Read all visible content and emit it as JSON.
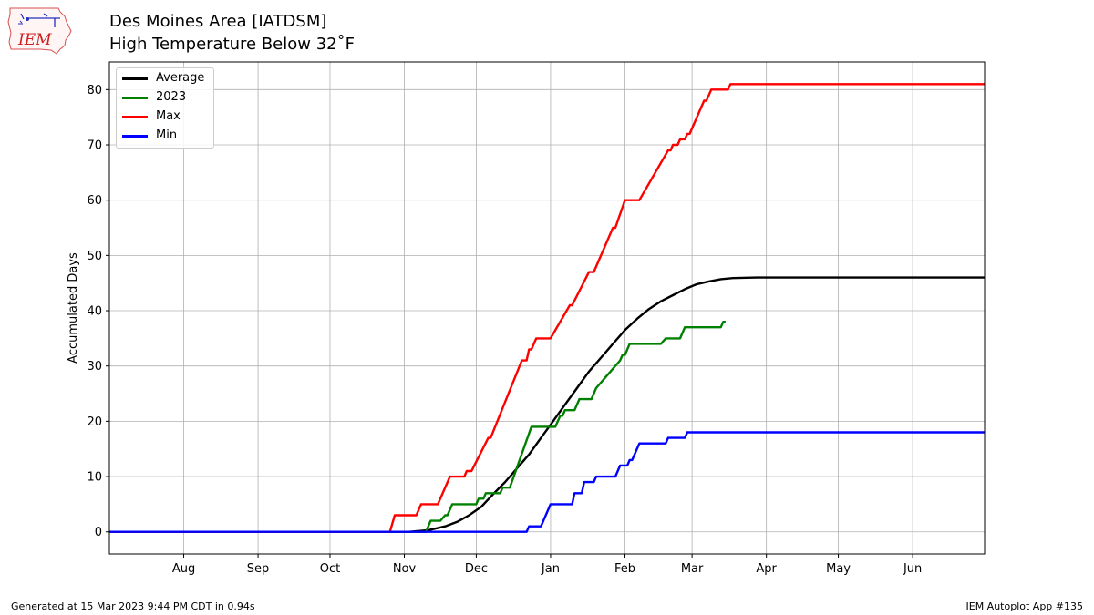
{
  "header": {
    "title_line1": "Des Moines Area [IATDSM]",
    "title_line2": "High Temperature Below 32˚F",
    "logo_text": "IEM"
  },
  "footer": {
    "generated": "Generated at 15 Mar 2023 9:44 PM CDT in 0.94s",
    "app": "IEM Autoplot App #135"
  },
  "chart_data": {
    "type": "line",
    "title": "High Temperature Below 32˚F",
    "xlabel": "",
    "ylabel": "Accumulated Days",
    "x_unit": "day of season (Jul 1 = 0)",
    "xlim": [
      0,
      365
    ],
    "ylim": [
      -4,
      85
    ],
    "yticks": [
      0,
      10,
      20,
      30,
      40,
      50,
      60,
      70,
      80
    ],
    "xticks": [
      {
        "label": "Aug",
        "day": 31
      },
      {
        "label": "Sep",
        "day": 62
      },
      {
        "label": "Oct",
        "day": 92
      },
      {
        "label": "Nov",
        "day": 123
      },
      {
        "label": "Dec",
        "day": 153
      },
      {
        "label": "Jan",
        "day": 184
      },
      {
        "label": "Feb",
        "day": 215
      },
      {
        "label": "Mar",
        "day": 243
      },
      {
        "label": "Apr",
        "day": 274
      },
      {
        "label": "May",
        "day": 304
      },
      {
        "label": "Jun",
        "day": 335
      }
    ],
    "grid": true,
    "legend_position": "top-left",
    "series": [
      {
        "name": "Average",
        "color": "#000000",
        "points": [
          [
            0,
            0
          ],
          [
            125,
            0
          ],
          [
            133,
            0.3
          ],
          [
            140,
            1
          ],
          [
            145,
            1.8
          ],
          [
            150,
            3
          ],
          [
            155,
            4.5
          ],
          [
            160,
            6.8
          ],
          [
            165,
            9
          ],
          [
            170,
            11.5
          ],
          [
            175,
            14
          ],
          [
            180,
            17
          ],
          [
            185,
            20
          ],
          [
            190,
            23
          ],
          [
            195,
            26
          ],
          [
            200,
            29
          ],
          [
            205,
            31.5
          ],
          [
            210,
            34
          ],
          [
            215,
            36.5
          ],
          [
            220,
            38.5
          ],
          [
            225,
            40.3
          ],
          [
            230,
            41.7
          ],
          [
            235,
            42.8
          ],
          [
            240,
            43.9
          ],
          [
            245,
            44.8
          ],
          [
            250,
            45.3
          ],
          [
            255,
            45.7
          ],
          [
            260,
            45.9
          ],
          [
            270,
            46
          ],
          [
            365,
            46
          ]
        ]
      },
      {
        "name": "2023",
        "color": "#008000",
        "points": [
          [
            0,
            0
          ],
          [
            132,
            0
          ],
          [
            134,
            2
          ],
          [
            138,
            2
          ],
          [
            140,
            3
          ],
          [
            141,
            3
          ],
          [
            143,
            5
          ],
          [
            153,
            5
          ],
          [
            154,
            6
          ],
          [
            156,
            6
          ],
          [
            157,
            7
          ],
          [
            163,
            7
          ],
          [
            164,
            8
          ],
          [
            167,
            8
          ],
          [
            176,
            19
          ],
          [
            186,
            19
          ],
          [
            188,
            21
          ],
          [
            189,
            21
          ],
          [
            190,
            22
          ],
          [
            194,
            22
          ],
          [
            196,
            24
          ],
          [
            201,
            24
          ],
          [
            203,
            26
          ],
          [
            205,
            27
          ],
          [
            207,
            28
          ],
          [
            213,
            31
          ],
          [
            214,
            32
          ],
          [
            215,
            32
          ],
          [
            217,
            34
          ],
          [
            230,
            34
          ],
          [
            232,
            35
          ],
          [
            238,
            35
          ],
          [
            240,
            37
          ],
          [
            255,
            37
          ],
          [
            256,
            38
          ],
          [
            257,
            38
          ]
        ]
      },
      {
        "name": "Max",
        "color": "#ff0000",
        "points": [
          [
            0,
            0
          ],
          [
            117,
            0
          ],
          [
            119,
            3
          ],
          [
            128,
            3
          ],
          [
            130,
            5
          ],
          [
            137,
            5
          ],
          [
            142,
            10
          ],
          [
            148,
            10
          ],
          [
            149,
            11
          ],
          [
            151,
            11
          ],
          [
            158,
            17
          ],
          [
            159,
            17
          ],
          [
            172,
            31
          ],
          [
            174,
            31
          ],
          [
            175,
            33
          ],
          [
            176,
            33
          ],
          [
            178,
            35
          ],
          [
            184,
            35
          ],
          [
            192,
            41
          ],
          [
            193,
            41
          ],
          [
            200,
            47
          ],
          [
            202,
            47
          ],
          [
            210,
            55
          ],
          [
            211,
            55
          ],
          [
            215,
            60
          ],
          [
            221,
            60
          ],
          [
            233,
            69
          ],
          [
            234,
            69
          ],
          [
            235,
            70
          ],
          [
            237,
            70
          ],
          [
            238,
            71
          ],
          [
            240,
            71
          ],
          [
            241,
            72
          ],
          [
            242,
            72
          ],
          [
            248,
            78
          ],
          [
            249,
            78
          ],
          [
            251,
            80
          ],
          [
            258,
            80
          ],
          [
            259,
            81
          ],
          [
            365,
            81
          ]
        ]
      },
      {
        "name": "Min",
        "color": "#0000ff",
        "points": [
          [
            0,
            0
          ],
          [
            174,
            0
          ],
          [
            175,
            1
          ],
          [
            180,
            1
          ],
          [
            184,
            5
          ],
          [
            193,
            5
          ],
          [
            194,
            7
          ],
          [
            197,
            7
          ],
          [
            198,
            9
          ],
          [
            202,
            9
          ],
          [
            203,
            10
          ],
          [
            211,
            10
          ],
          [
            213,
            12
          ],
          [
            216,
            12
          ],
          [
            217,
            13
          ],
          [
            218,
            13
          ],
          [
            221,
            16
          ],
          [
            232,
            16
          ],
          [
            233,
            17
          ],
          [
            240,
            17
          ],
          [
            241,
            18
          ],
          [
            365,
            18
          ]
        ]
      }
    ]
  }
}
